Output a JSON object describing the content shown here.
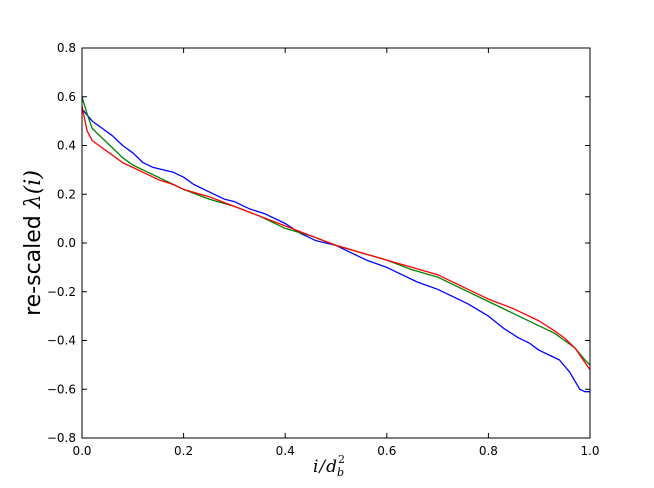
{
  "chart_data": {
    "type": "line",
    "title": "",
    "xlabel": "i/d_b^2",
    "ylabel_prefix": "re-scaled ",
    "ylabel_math": "λ(i)",
    "xlim": [
      0.0,
      1.0
    ],
    "ylim": [
      -0.8,
      0.8
    ],
    "x_ticks": [
      "0.0",
      "0.2",
      "0.4",
      "0.6",
      "0.8",
      "1.0"
    ],
    "y_ticks": [
      "0.8",
      "0.6",
      "0.4",
      "0.2",
      "0.0",
      "−0.2",
      "−0.4",
      "−0.6",
      "−0.8"
    ],
    "grid": false,
    "legend": "none",
    "series": [
      {
        "color": "#0000ff",
        "points": [
          [
            0.0,
            0.55
          ],
          [
            0.02,
            0.5
          ],
          [
            0.04,
            0.47
          ],
          [
            0.06,
            0.44
          ],
          [
            0.08,
            0.4
          ],
          [
            0.1,
            0.37
          ],
          [
            0.12,
            0.33
          ],
          [
            0.14,
            0.31
          ],
          [
            0.16,
            0.3
          ],
          [
            0.18,
            0.29
          ],
          [
            0.2,
            0.27
          ],
          [
            0.22,
            0.24
          ],
          [
            0.25,
            0.21
          ],
          [
            0.28,
            0.18
          ],
          [
            0.3,
            0.17
          ],
          [
            0.33,
            0.14
          ],
          [
            0.36,
            0.12
          ],
          [
            0.4,
            0.08
          ],
          [
            0.43,
            0.04
          ],
          [
            0.46,
            0.01
          ],
          [
            0.5,
            -0.01
          ],
          [
            0.53,
            -0.04
          ],
          [
            0.56,
            -0.07
          ],
          [
            0.6,
            -0.1
          ],
          [
            0.63,
            -0.13
          ],
          [
            0.66,
            -0.16
          ],
          [
            0.7,
            -0.19
          ],
          [
            0.73,
            -0.22
          ],
          [
            0.76,
            -0.25
          ],
          [
            0.8,
            -0.3
          ],
          [
            0.83,
            -0.35
          ],
          [
            0.86,
            -0.39
          ],
          [
            0.88,
            -0.41
          ],
          [
            0.9,
            -0.44
          ],
          [
            0.92,
            -0.46
          ],
          [
            0.94,
            -0.48
          ],
          [
            0.96,
            -0.53
          ],
          [
            0.98,
            -0.6
          ],
          [
            0.99,
            -0.61
          ],
          [
            1.0,
            -0.61
          ]
        ]
      },
      {
        "color": "#008000",
        "points": [
          [
            0.0,
            0.6
          ],
          [
            0.01,
            0.53
          ],
          [
            0.02,
            0.47
          ],
          [
            0.04,
            0.43
          ],
          [
            0.06,
            0.39
          ],
          [
            0.08,
            0.35
          ],
          [
            0.1,
            0.32
          ],
          [
            0.12,
            0.3
          ],
          [
            0.15,
            0.27
          ],
          [
            0.18,
            0.24
          ],
          [
            0.2,
            0.22
          ],
          [
            0.25,
            0.18
          ],
          [
            0.3,
            0.15
          ],
          [
            0.35,
            0.11
          ],
          [
            0.4,
            0.06
          ],
          [
            0.45,
            0.03
          ],
          [
            0.5,
            -0.01
          ],
          [
            0.55,
            -0.04
          ],
          [
            0.6,
            -0.07
          ],
          [
            0.65,
            -0.11
          ],
          [
            0.7,
            -0.14
          ],
          [
            0.75,
            -0.19
          ],
          [
            0.8,
            -0.24
          ],
          [
            0.85,
            -0.29
          ],
          [
            0.9,
            -0.34
          ],
          [
            0.93,
            -0.37
          ],
          [
            0.95,
            -0.4
          ],
          [
            0.97,
            -0.43
          ],
          [
            0.99,
            -0.48
          ],
          [
            1.0,
            -0.5
          ]
        ]
      },
      {
        "color": "#ff0000",
        "points": [
          [
            0.0,
            0.56
          ],
          [
            0.01,
            0.46
          ],
          [
            0.02,
            0.42
          ],
          [
            0.04,
            0.39
          ],
          [
            0.06,
            0.36
          ],
          [
            0.08,
            0.33
          ],
          [
            0.1,
            0.31
          ],
          [
            0.12,
            0.29
          ],
          [
            0.15,
            0.26
          ],
          [
            0.18,
            0.24
          ],
          [
            0.2,
            0.22
          ],
          [
            0.25,
            0.19
          ],
          [
            0.3,
            0.15
          ],
          [
            0.35,
            0.11
          ],
          [
            0.4,
            0.07
          ],
          [
            0.45,
            0.03
          ],
          [
            0.5,
            -0.01
          ],
          [
            0.55,
            -0.04
          ],
          [
            0.6,
            -0.07
          ],
          [
            0.65,
            -0.1
          ],
          [
            0.7,
            -0.13
          ],
          [
            0.75,
            -0.18
          ],
          [
            0.8,
            -0.23
          ],
          [
            0.85,
            -0.27
          ],
          [
            0.9,
            -0.32
          ],
          [
            0.93,
            -0.36
          ],
          [
            0.95,
            -0.39
          ],
          [
            0.97,
            -0.43
          ],
          [
            0.99,
            -0.49
          ],
          [
            1.0,
            -0.52
          ]
        ]
      }
    ]
  }
}
